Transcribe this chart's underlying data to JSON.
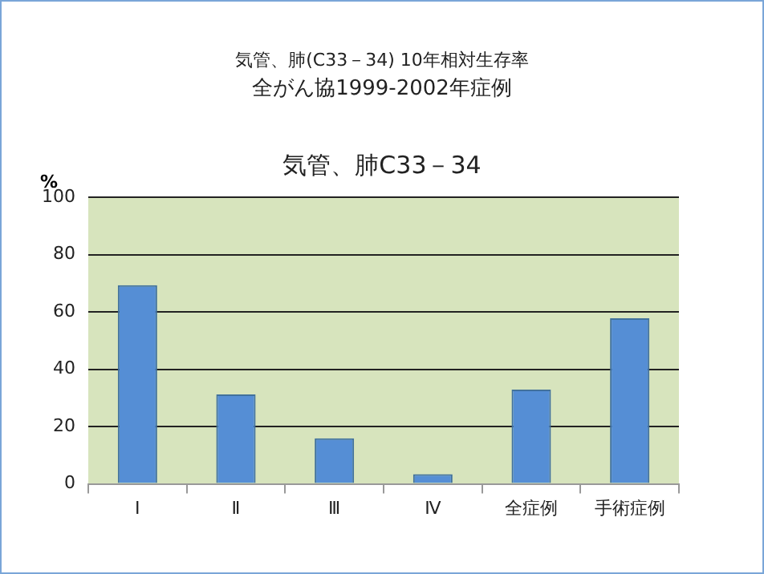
{
  "chart_data": {
    "type": "bar",
    "title": "気管、肺C33－34",
    "annotations": [
      "気管、肺(C33－34) 10年相対生存率",
      "全がん協1999-2002年症例"
    ],
    "ylabel": "%",
    "categories": [
      "Ⅰ",
      "Ⅱ",
      "Ⅲ",
      "Ⅳ",
      "全症例",
      "手術症例"
    ],
    "values": [
      69.3,
      31.2,
      15.9,
      3.4,
      32.9,
      57.8
    ],
    "color": "#558ed5",
    "ylim": [
      0,
      100
    ],
    "yticks": [
      0,
      20,
      40,
      60,
      80,
      100
    ],
    "grid": "y",
    "legend": false
  }
}
